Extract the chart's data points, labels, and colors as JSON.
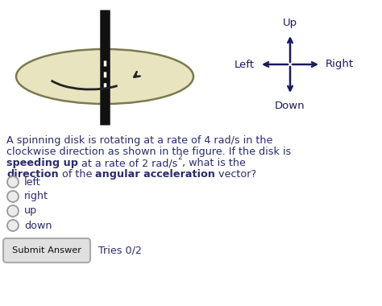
{
  "bg_color": "#ffffff",
  "text_color": "#2b2b6e",
  "disk_fill": "#e8e4c0",
  "disk_edge": "#7a7a50",
  "bar_color": "#111111",
  "compass_color": "#1a1a5e",
  "arrow_color": "#222222",
  "question_line1": "A spinning disk is rotating at a rate of 4 rad/s in the",
  "question_line2": "clockwise direction as shown in the figure. If the disk is",
  "choices": [
    "left",
    "right",
    "up",
    "down"
  ],
  "submit_label": "Submit Answer",
  "tries_label": "Tries 0/2"
}
